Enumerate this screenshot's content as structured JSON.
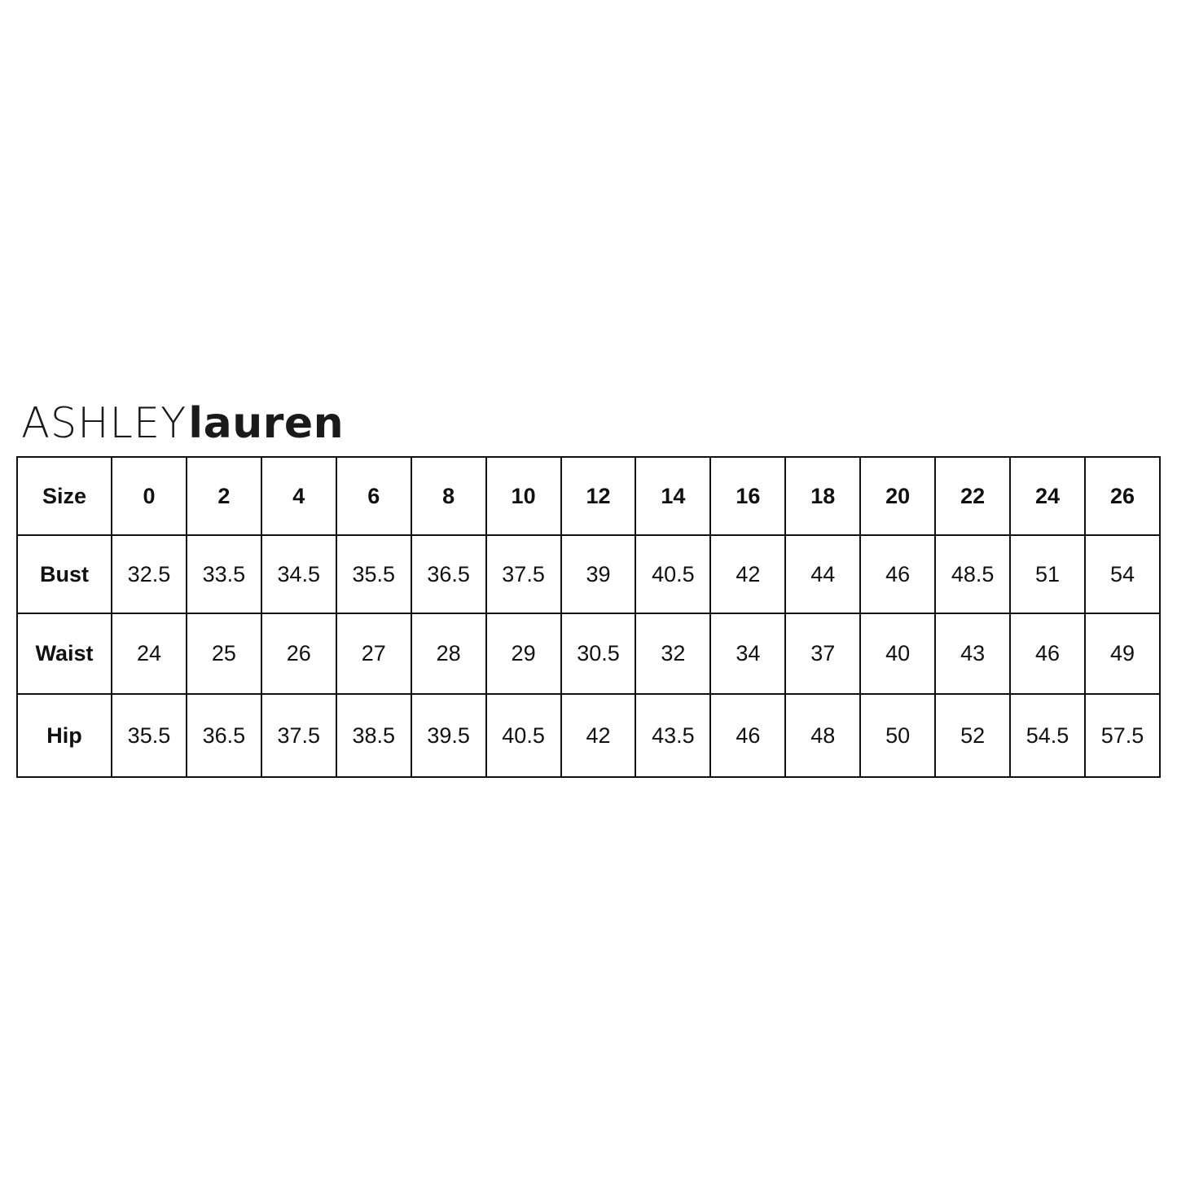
{
  "brand": {
    "part1": "ASHLEY",
    "part2": "lauren"
  },
  "size_chart": {
    "header": {
      "label": "Size",
      "sizes": [
        "0",
        "2",
        "4",
        "6",
        "8",
        "10",
        "12",
        "14",
        "16",
        "18",
        "20",
        "22",
        "24",
        "26"
      ]
    },
    "rows": [
      {
        "label": "Bust",
        "values": [
          "32.5",
          "33.5",
          "34.5",
          "35.5",
          "36.5",
          "37.5",
          "39",
          "40.5",
          "42",
          "44",
          "46",
          "48.5",
          "51",
          "54"
        ]
      },
      {
        "label": "Waist",
        "values": [
          "24",
          "25",
          "26",
          "27",
          "28",
          "29",
          "30.5",
          "32",
          "34",
          "37",
          "40",
          "43",
          "46",
          "49"
        ]
      },
      {
        "label": "Hip",
        "values": [
          "35.5",
          "36.5",
          "37.5",
          "38.5",
          "39.5",
          "40.5",
          "42",
          "43.5",
          "46",
          "48",
          "50",
          "52",
          "54.5",
          "57.5"
        ]
      }
    ]
  }
}
